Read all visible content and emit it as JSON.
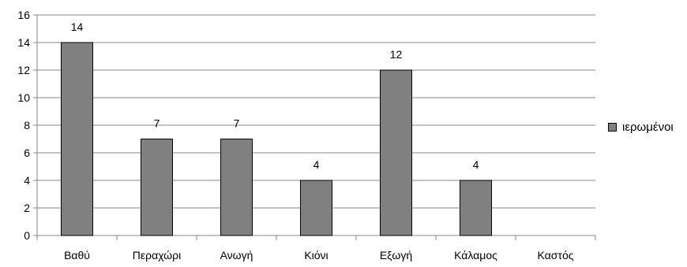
{
  "chart_data": {
    "type": "bar",
    "categories": [
      "Βαθύ",
      "Περαχώρι",
      "Ανωγή",
      "Κιόνι",
      "Εξωγή",
      "Κάλαμος",
      "Καστός"
    ],
    "series": [
      {
        "name": "ιερωμένοι",
        "values": [
          14,
          7,
          7,
          4,
          12,
          4,
          null
        ]
      }
    ],
    "data_labels": [
      "14",
      "7",
      "7",
      "4",
      "12",
      "4",
      ""
    ],
    "title": "",
    "xlabel": "",
    "ylabel": "",
    "ylim": [
      0,
      16
    ],
    "yticks": [
      0,
      2,
      4,
      6,
      8,
      10,
      12,
      14,
      16
    ],
    "grid": true,
    "legend_position": "right",
    "bar_color": "#808080",
    "bar_border_color": "#000000",
    "grid_color": "#878787"
  }
}
